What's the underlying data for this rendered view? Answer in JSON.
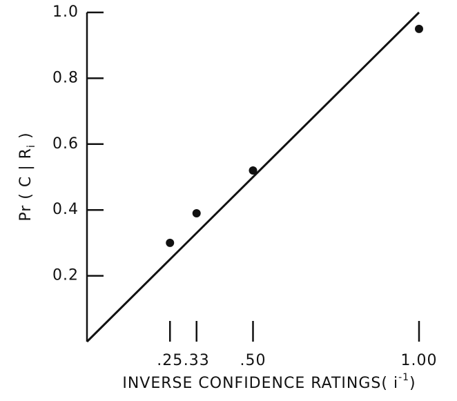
{
  "chart_data": {
    "type": "scatter",
    "x_label": {
      "main": "INVERSE CONFIDENCE RATINGS( i",
      "sup": "-1",
      "end": ")"
    },
    "y_label": {
      "main": "Pr ( C | R",
      "sub": "i",
      "end": " )"
    },
    "x": [
      0.25,
      0.33,
      0.5,
      1.0
    ],
    "values": [
      0.3,
      0.39,
      0.52,
      0.95
    ],
    "color": "#111111",
    "fit_line": {
      "x": [
        0,
        1
      ],
      "y": [
        0,
        1
      ]
    },
    "xlim": [
      0,
      1
    ],
    "ylim": [
      0,
      1
    ],
    "xticks": [
      {
        "value": 0.25,
        "label": ".25"
      },
      {
        "value": 0.33,
        "label": ".33"
      },
      {
        "value": 0.5,
        "label": ".50"
      },
      {
        "value": 1,
        "label": "1.00"
      }
    ],
    "yticks": [
      0.2,
      0.4,
      0.6,
      0.8,
      {
        "value": 1,
        "label": "1.0"
      }
    ]
  }
}
